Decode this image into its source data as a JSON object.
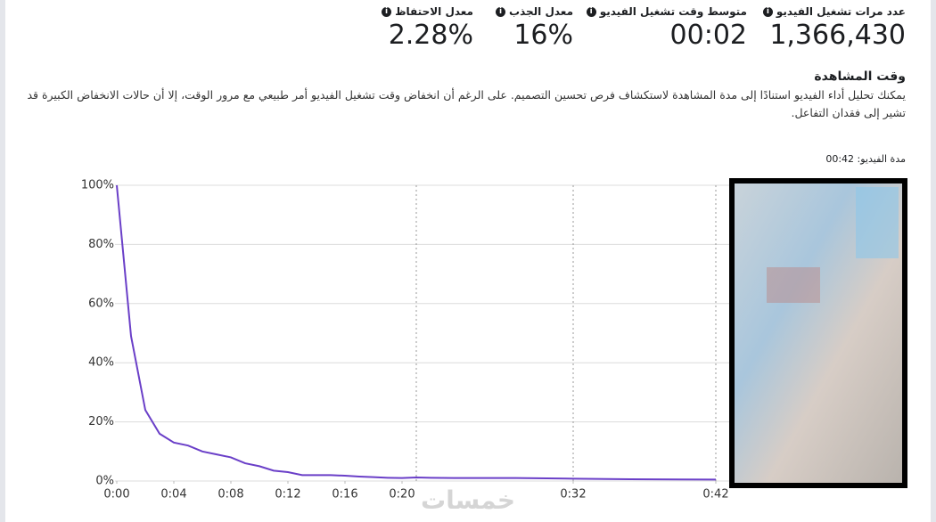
{
  "metrics": [
    {
      "label": "عدد مرات تشغيل الفيديو",
      "value": "1,366,430"
    },
    {
      "label": "متوسط وقت تشغيل الفيديو",
      "value": "00:02"
    },
    {
      "label": "معدل الجذب",
      "value": "16%"
    },
    {
      "label": "معدل الاحتفاظ",
      "value": "2.28%"
    }
  ],
  "section": {
    "title": "وقت المشاهدة",
    "description": "يمكنك تحليل أداء الفيديو استنادًا إلى مدة المشاهدة لاستكشاف فرص تحسين التصميم. على الرغم أن انخفاض وقت تشغيل الفيديو أمر طبيعي مع مرور الوقت، إلا أن حالات الانخفاض الكبيرة قد تشير إلى فقدان التفاعل.",
    "video_duration": "مدة الفيديو: 00:42"
  },
  "watermark": "خمسات",
  "chart_data": {
    "type": "line",
    "color": "#6a3fc8",
    "x": [
      0,
      1,
      2,
      3,
      4,
      5,
      6,
      7,
      8,
      9,
      10,
      11,
      12,
      13,
      14,
      15,
      16,
      17,
      18,
      19,
      20,
      21,
      22,
      24,
      28,
      32,
      36,
      42
    ],
    "values": [
      100,
      49,
      24,
      16,
      13,
      12,
      10,
      9,
      8,
      6,
      5,
      3.5,
      3,
      2,
      2,
      2,
      1.8,
      1.5,
      1.3,
      1.1,
      1,
      1.2,
      1.1,
      1,
      1,
      0.8,
      0.6,
      0.5
    ],
    "xlim": [
      0,
      42
    ],
    "ylim": [
      0,
      100
    ],
    "xticks": [
      {
        "value": 0,
        "label": "0:00"
      },
      {
        "value": 4,
        "label": "0:04"
      },
      {
        "value": 8,
        "label": "0:08"
      },
      {
        "value": 12,
        "label": "0:12"
      },
      {
        "value": 16,
        "label": "0:16"
      },
      {
        "value": 20,
        "label": "0:20"
      },
      {
        "value": 32,
        "label": "0:32"
      },
      {
        "value": 42,
        "label": "0:42"
      }
    ],
    "yticks": [
      {
        "value": 0,
        "label": "0%"
      },
      {
        "value": 20,
        "label": "20%"
      },
      {
        "value": 40,
        "label": "40%"
      },
      {
        "value": 60,
        "label": "60%"
      },
      {
        "value": 80,
        "label": "80%"
      },
      {
        "value": 100,
        "label": "100%"
      }
    ],
    "markers": [
      21,
      32,
      42
    ],
    "grid": true
  }
}
